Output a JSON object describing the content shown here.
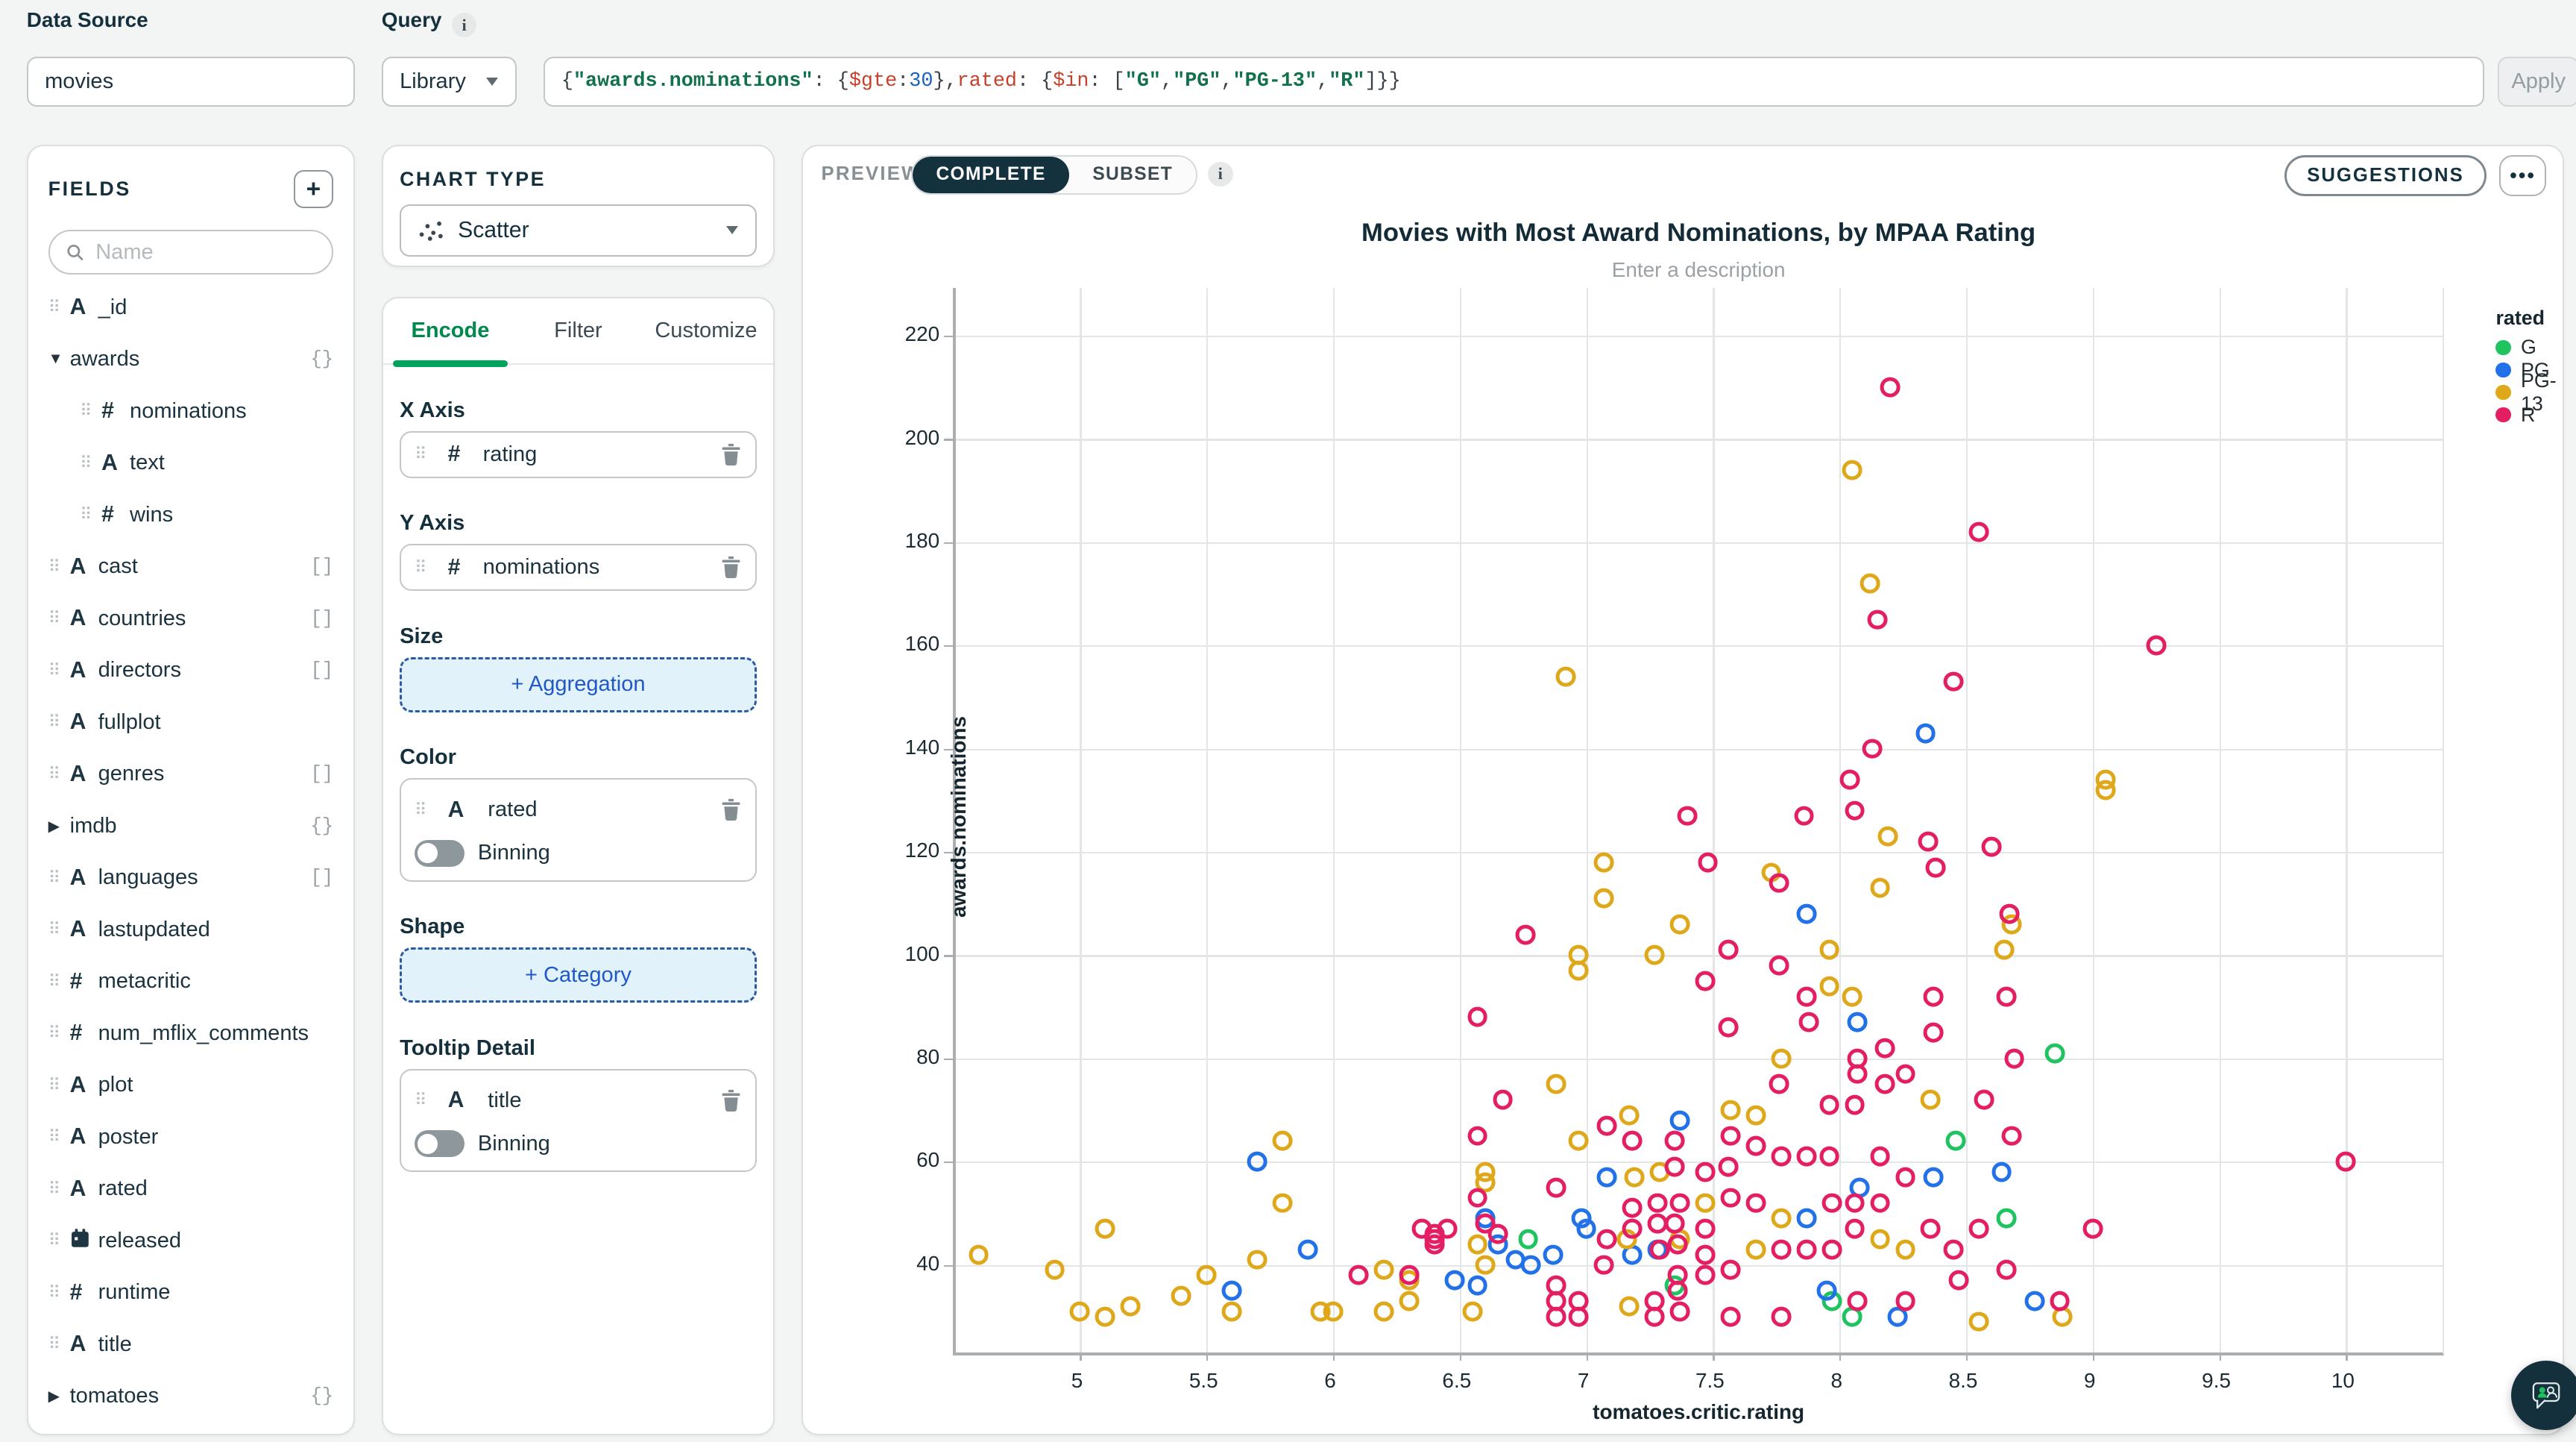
{
  "topbar": {
    "data_source_label": "Data Source",
    "data_source_value": "movies",
    "query_label": "Query",
    "library_label": "Library",
    "apply_label": "Apply",
    "query_tokens": [
      {
        "t": "{",
        "c": "p"
      },
      {
        "t": "\"awards.nominations\"",
        "c": "key"
      },
      {
        "t": ": {",
        "c": "p"
      },
      {
        "t": "$gte",
        "c": "op"
      },
      {
        "t": ": ",
        "c": "p"
      },
      {
        "t": "30",
        "c": "num"
      },
      {
        "t": "}, ",
        "c": "p"
      },
      {
        "t": "rated",
        "c": "op"
      },
      {
        "t": ": {",
        "c": "p"
      },
      {
        "t": "$in",
        "c": "op"
      },
      {
        "t": ": [",
        "c": "p"
      },
      {
        "t": "\"G\"",
        "c": "str"
      },
      {
        "t": ", ",
        "c": "p"
      },
      {
        "t": "\"PG\"",
        "c": "str"
      },
      {
        "t": ", ",
        "c": "p"
      },
      {
        "t": "\"PG-13\"",
        "c": "str"
      },
      {
        "t": ", ",
        "c": "p"
      },
      {
        "t": "\"R\"",
        "c": "str"
      },
      {
        "t": "]}}",
        "c": "p"
      }
    ]
  },
  "fields": {
    "title": "FIELDS",
    "add_button_label": "+",
    "search_placeholder": "Name",
    "items": [
      {
        "name": "_id",
        "icon": "string",
        "indent": 0,
        "drag": true,
        "badge": ""
      },
      {
        "name": "awards",
        "icon": "caret-down",
        "indent": 0,
        "drag": false,
        "badge": "{}"
      },
      {
        "name": "nominations",
        "icon": "number",
        "indent": 1,
        "drag": true,
        "badge": ""
      },
      {
        "name": "text",
        "icon": "string",
        "indent": 1,
        "drag": true,
        "badge": ""
      },
      {
        "name": "wins",
        "icon": "number",
        "indent": 1,
        "drag": true,
        "badge": ""
      },
      {
        "name": "cast",
        "icon": "string",
        "indent": 0,
        "drag": true,
        "badge": "[]"
      },
      {
        "name": "countries",
        "icon": "string",
        "indent": 0,
        "drag": true,
        "badge": "[]"
      },
      {
        "name": "directors",
        "icon": "string",
        "indent": 0,
        "drag": true,
        "badge": "[]"
      },
      {
        "name": "fullplot",
        "icon": "string",
        "indent": 0,
        "drag": true,
        "badge": ""
      },
      {
        "name": "genres",
        "icon": "string",
        "indent": 0,
        "drag": true,
        "badge": "[]"
      },
      {
        "name": "imdb",
        "icon": "caret-right",
        "indent": 0,
        "drag": false,
        "badge": "{}"
      },
      {
        "name": "languages",
        "icon": "string",
        "indent": 0,
        "drag": true,
        "badge": "[]"
      },
      {
        "name": "lastupdated",
        "icon": "string",
        "indent": 0,
        "drag": true,
        "badge": ""
      },
      {
        "name": "metacritic",
        "icon": "number",
        "indent": 0,
        "drag": true,
        "badge": ""
      },
      {
        "name": "num_mflix_comments",
        "icon": "number",
        "indent": 0,
        "drag": true,
        "badge": ""
      },
      {
        "name": "plot",
        "icon": "string",
        "indent": 0,
        "drag": true,
        "badge": ""
      },
      {
        "name": "poster",
        "icon": "string",
        "indent": 0,
        "drag": true,
        "badge": ""
      },
      {
        "name": "rated",
        "icon": "string",
        "indent": 0,
        "drag": true,
        "badge": ""
      },
      {
        "name": "released",
        "icon": "date",
        "indent": 0,
        "drag": true,
        "badge": ""
      },
      {
        "name": "runtime",
        "icon": "number",
        "indent": 0,
        "drag": true,
        "badge": ""
      },
      {
        "name": "title",
        "icon": "string",
        "indent": 0,
        "drag": true,
        "badge": ""
      },
      {
        "name": "tomatoes",
        "icon": "caret-right",
        "indent": 0,
        "drag": false,
        "badge": "{}"
      },
      {
        "name": "",
        "icon": "string",
        "indent": 0,
        "drag": true,
        "badge": "",
        "partial": true
      }
    ]
  },
  "chart_builder": {
    "chart_type_label": "CHART TYPE",
    "chart_type_value": "Scatter",
    "tabs": {
      "encode": "Encode",
      "filter": "Filter",
      "customize": "Customize"
    },
    "active_tab": "Encode",
    "x_axis": {
      "label": "X Axis",
      "field": "rating",
      "type": "number"
    },
    "y_axis": {
      "label": "Y Axis",
      "field": "nominations",
      "type": "number"
    },
    "size": {
      "label": "Size",
      "button": "+ Aggregation"
    },
    "color": {
      "label": "Color",
      "field": "rated",
      "type": "string",
      "binning_label": "Binning",
      "binning_on": false
    },
    "shape": {
      "label": "Shape",
      "button": "+ Category"
    },
    "tooltip": {
      "label": "Tooltip Detail",
      "field": "title",
      "type": "string",
      "binning_label": "Binning",
      "binning_on": false
    }
  },
  "preview": {
    "preview_label": "PREVIEW",
    "toggle_complete": "COMPLETE",
    "toggle_subset": "SUBSET",
    "active_toggle": "COMPLETE",
    "suggestions_label": "SUGGESTIONS",
    "more_label": "•••",
    "title": "Movies with Most Award Nominations, by MPAA Rating",
    "description_placeholder": "Enter a description"
  },
  "chart_data": {
    "type": "scatter",
    "title": "Movies with Most Award Nominations, by MPAA Rating",
    "xlabel": "tomatoes.critic.rating",
    "ylabel": "awards.nominations",
    "legend_title": "rated",
    "legend_position": "right",
    "grid": true,
    "x_ticks": [
      5,
      5.5,
      6,
      6.5,
      7,
      7.5,
      8,
      8.5,
      9,
      9.5,
      10
    ],
    "y_ticks": [
      40,
      60,
      80,
      100,
      120,
      140,
      160,
      180,
      200,
      220
    ],
    "xlim": [
      4.51,
      10.4
    ],
    "ylim": [
      22.5,
      229.2
    ],
    "series": [
      {
        "name": "G",
        "color": "#1fc35f",
        "points": [
          [
            6.77,
            45
          ],
          [
            7.35,
            36
          ],
          [
            7.97,
            33
          ],
          [
            8.05,
            30
          ],
          [
            8.46,
            64
          ],
          [
            8.66,
            49
          ],
          [
            8.85,
            81
          ]
        ]
      },
      {
        "name": "PG",
        "color": "#2371e8",
        "points": [
          [
            5.6,
            35
          ],
          [
            5.7,
            60
          ],
          [
            5.9,
            43
          ],
          [
            6.48,
            37
          ],
          [
            6.57,
            36
          ],
          [
            6.6,
            49
          ],
          [
            6.65,
            44
          ],
          [
            6.72,
            41
          ],
          [
            6.78,
            40
          ],
          [
            6.87,
            42
          ],
          [
            6.98,
            49
          ],
          [
            7.0,
            47
          ],
          [
            7.08,
            57
          ],
          [
            7.18,
            42
          ],
          [
            7.28,
            43
          ],
          [
            7.37,
            68
          ],
          [
            7.87,
            49
          ],
          [
            7.87,
            108
          ],
          [
            7.95,
            35
          ],
          [
            8.07,
            87
          ],
          [
            8.08,
            55
          ],
          [
            8.23,
            30
          ],
          [
            8.34,
            143
          ],
          [
            8.37,
            57
          ],
          [
            8.64,
            58
          ],
          [
            8.77,
            33
          ]
        ]
      },
      {
        "name": "PG-13",
        "color": "#dfa81a",
        "points": [
          [
            4.6,
            42
          ],
          [
            4.9,
            39
          ],
          [
            5.0,
            31
          ],
          [
            5.1,
            47
          ],
          [
            5.1,
            30
          ],
          [
            5.2,
            32
          ],
          [
            5.4,
            34
          ],
          [
            5.5,
            38
          ],
          [
            5.6,
            31
          ],
          [
            5.7,
            41
          ],
          [
            5.8,
            64
          ],
          [
            5.8,
            52
          ],
          [
            5.95,
            31
          ],
          [
            6.0,
            31
          ],
          [
            6.2,
            39
          ],
          [
            6.2,
            31
          ],
          [
            6.3,
            37
          ],
          [
            6.3,
            33
          ],
          [
            6.55,
            31
          ],
          [
            6.57,
            44
          ],
          [
            6.6,
            58
          ],
          [
            6.6,
            56
          ],
          [
            6.6,
            40
          ],
          [
            6.88,
            75
          ],
          [
            6.92,
            154
          ],
          [
            6.97,
            64
          ],
          [
            6.97,
            100
          ],
          [
            6.97,
            97
          ],
          [
            7.07,
            118
          ],
          [
            7.07,
            111
          ],
          [
            7.16,
            45
          ],
          [
            7.17,
            69
          ],
          [
            7.17,
            32
          ],
          [
            7.19,
            57
          ],
          [
            7.27,
            100
          ],
          [
            7.29,
            58
          ],
          [
            7.37,
            106
          ],
          [
            7.37,
            45
          ],
          [
            7.47,
            52
          ],
          [
            7.57,
            70
          ],
          [
            7.67,
            69
          ],
          [
            7.67,
            43
          ],
          [
            7.73,
            116
          ],
          [
            7.77,
            80
          ],
          [
            7.77,
            49
          ],
          [
            7.96,
            101
          ],
          [
            7.96,
            94
          ],
          [
            8.05,
            194
          ],
          [
            8.05,
            92
          ],
          [
            8.12,
            172
          ],
          [
            8.16,
            113
          ],
          [
            8.16,
            45
          ],
          [
            8.19,
            123
          ],
          [
            8.26,
            43
          ],
          [
            8.36,
            72
          ],
          [
            8.55,
            29
          ],
          [
            8.65,
            101
          ],
          [
            8.68,
            106
          ],
          [
            8.88,
            30
          ],
          [
            9.05,
            134
          ],
          [
            9.05,
            132
          ]
        ]
      },
      {
        "name": "R",
        "color": "#e41e63",
        "points": [
          [
            8.2,
            210
          ],
          [
            8.55,
            182
          ],
          [
            9.25,
            160
          ],
          [
            8.15,
            165
          ],
          [
            8.45,
            153
          ],
          [
            8.13,
            140
          ],
          [
            8.04,
            134
          ],
          [
            8.06,
            128
          ],
          [
            7.86,
            127
          ],
          [
            7.4,
            127
          ],
          [
            7.48,
            118
          ],
          [
            7.76,
            114
          ],
          [
            6.76,
            104
          ],
          [
            7.56,
            101
          ],
          [
            8.6,
            121
          ],
          [
            8.35,
            122
          ],
          [
            8.38,
            117
          ],
          [
            8.67,
            108
          ],
          [
            6.57,
            88
          ],
          [
            7.47,
            95
          ],
          [
            7.76,
            98
          ],
          [
            7.87,
            92
          ],
          [
            7.88,
            87
          ],
          [
            7.56,
            86
          ],
          [
            8.07,
            80
          ],
          [
            8.07,
            77
          ],
          [
            8.18,
            82
          ],
          [
            8.18,
            75
          ],
          [
            8.26,
            77
          ],
          [
            8.37,
            92
          ],
          [
            8.37,
            85
          ],
          [
            8.66,
            92
          ],
          [
            8.57,
            72
          ],
          [
            8.69,
            80
          ],
          [
            8.68,
            65
          ],
          [
            6.1,
            38
          ],
          [
            6.3,
            38
          ],
          [
            6.35,
            47
          ],
          [
            6.4,
            46
          ],
          [
            6.4,
            45
          ],
          [
            6.4,
            44
          ],
          [
            6.45,
            47
          ],
          [
            6.57,
            53
          ],
          [
            6.57,
            65
          ],
          [
            6.6,
            48
          ],
          [
            6.65,
            46
          ],
          [
            6.67,
            72
          ],
          [
            6.88,
            55
          ],
          [
            6.88,
            36
          ],
          [
            6.88,
            33
          ],
          [
            6.88,
            30
          ],
          [
            6.97,
            33
          ],
          [
            6.97,
            30
          ],
          [
            7.08,
            67
          ],
          [
            7.08,
            45
          ],
          [
            7.07,
            40
          ],
          [
            7.18,
            64
          ],
          [
            7.18,
            51
          ],
          [
            7.18,
            47
          ],
          [
            7.28,
            52
          ],
          [
            7.28,
            48
          ],
          [
            7.29,
            43
          ],
          [
            7.27,
            33
          ],
          [
            7.27,
            30
          ],
          [
            7.35,
            64
          ],
          [
            7.35,
            59
          ],
          [
            7.37,
            52
          ],
          [
            7.35,
            48
          ],
          [
            7.36,
            44
          ],
          [
            7.36,
            38
          ],
          [
            7.36,
            35
          ],
          [
            7.37,
            31
          ],
          [
            7.47,
            58
          ],
          [
            7.47,
            47
          ],
          [
            7.47,
            42
          ],
          [
            7.47,
            38
          ],
          [
            7.57,
            65
          ],
          [
            7.56,
            59
          ],
          [
            7.57,
            53
          ],
          [
            7.57,
            39
          ],
          [
            7.57,
            30
          ],
          [
            7.67,
            63
          ],
          [
            7.67,
            52
          ],
          [
            7.76,
            75
          ],
          [
            7.77,
            61
          ],
          [
            7.77,
            43
          ],
          [
            7.77,
            30
          ],
          [
            7.87,
            61
          ],
          [
            7.87,
            43
          ],
          [
            7.96,
            71
          ],
          [
            7.96,
            61
          ],
          [
            7.97,
            52
          ],
          [
            7.97,
            43
          ],
          [
            8.06,
            71
          ],
          [
            8.06,
            52
          ],
          [
            8.06,
            47
          ],
          [
            8.07,
            33
          ],
          [
            8.16,
            61
          ],
          [
            8.16,
            52
          ],
          [
            8.26,
            57
          ],
          [
            8.26,
            33
          ],
          [
            8.36,
            47
          ],
          [
            8.45,
            43
          ],
          [
            8.47,
            37
          ],
          [
            8.55,
            47
          ],
          [
            8.66,
            39
          ],
          [
            8.87,
            33
          ],
          [
            9.0,
            47
          ],
          [
            10.0,
            60
          ]
        ]
      }
    ]
  }
}
